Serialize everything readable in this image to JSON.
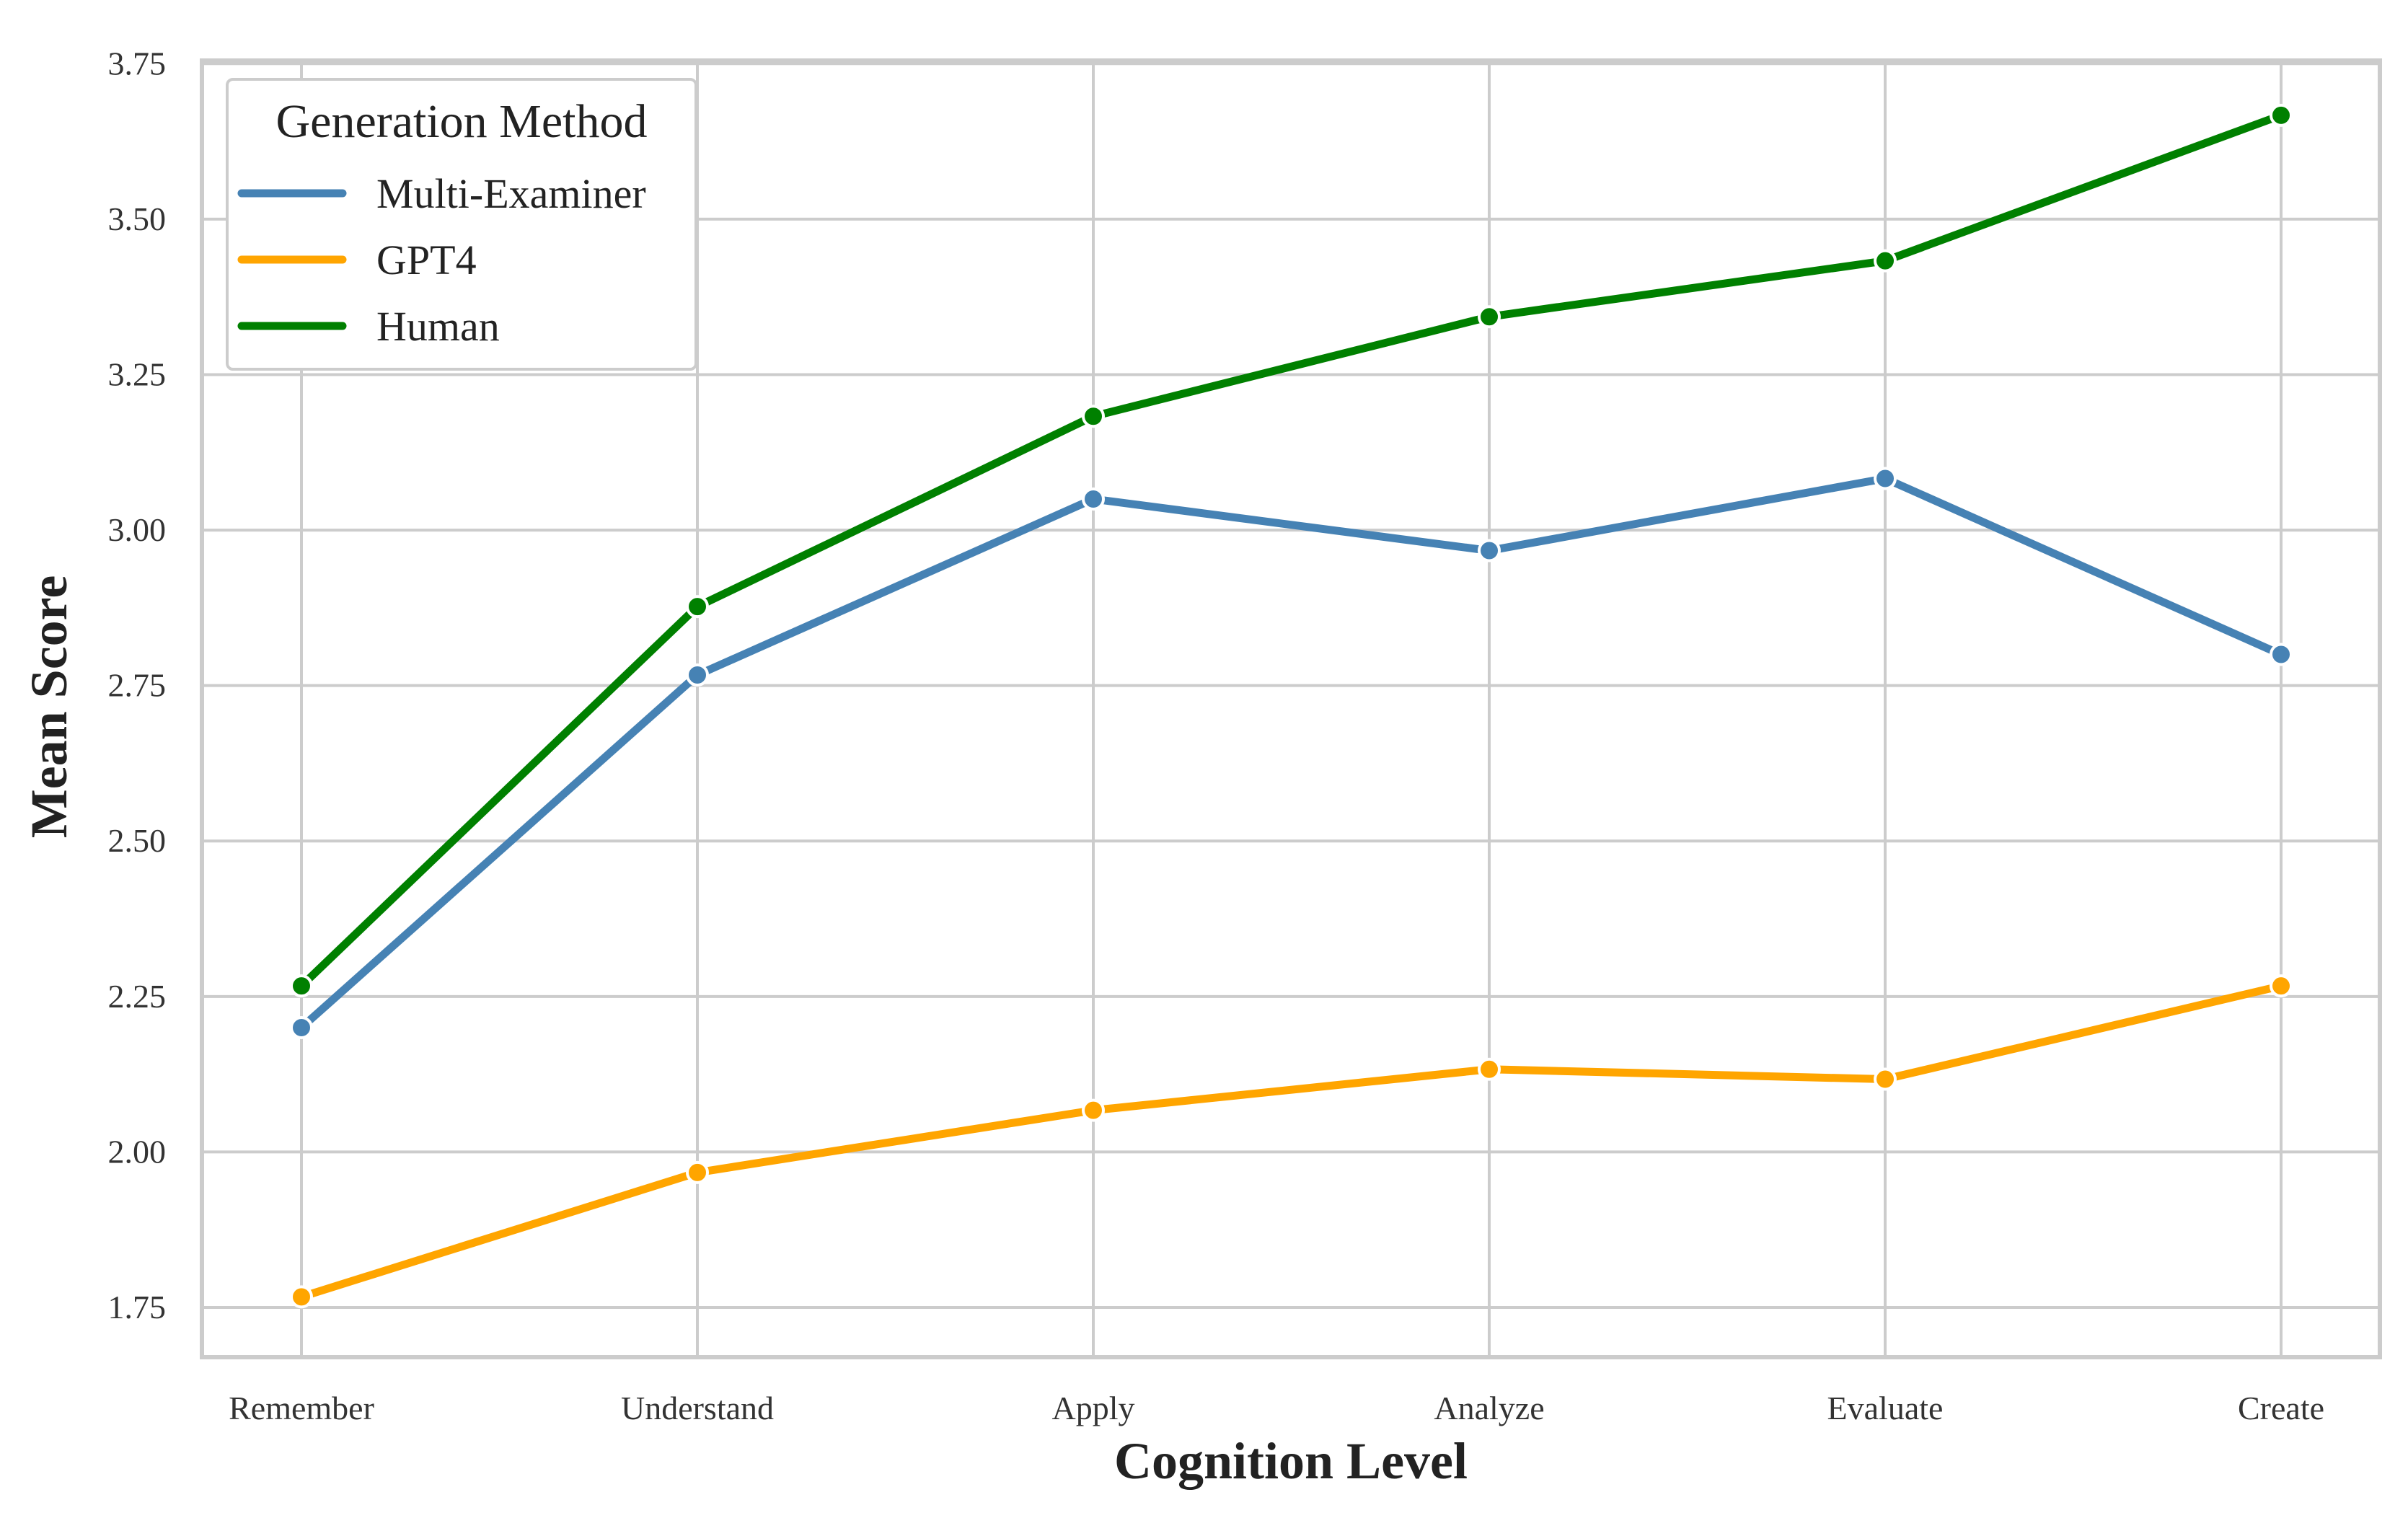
{
  "chart_data": {
    "type": "line",
    "title": "",
    "xlabel": "Cognition Level",
    "ylabel": "Mean Score",
    "categories": [
      "Remember",
      "Understand",
      "Apply",
      "Analyze",
      "Evaluate",
      "Create"
    ],
    "ylim": [
      1.67,
      3.755
    ],
    "yticks": [
      1.75,
      2.0,
      2.25,
      2.5,
      2.75,
      3.0,
      3.25,
      3.5,
      3.75
    ],
    "ytick_labels": [
      "1.75",
      "2.00",
      "2.25",
      "2.50",
      "2.75",
      "3.00",
      "3.25",
      "3.50",
      "3.75"
    ],
    "grid": true,
    "legend": {
      "title": "Generation Method",
      "placement": "top-left"
    },
    "series": [
      {
        "name": "Multi-Examiner",
        "color": "#4682B4",
        "values": [
          2.2,
          2.767,
          3.05,
          2.967,
          3.083,
          2.8
        ]
      },
      {
        "name": "GPT4",
        "color": "#FFA500",
        "values": [
          1.767,
          1.967,
          2.067,
          2.133,
          2.117,
          2.267
        ]
      },
      {
        "name": "Human",
        "color": "#008000",
        "values": [
          2.267,
          2.877,
          3.183,
          3.343,
          3.433,
          3.667
        ]
      }
    ]
  },
  "style": {
    "grid_color": "#CCCCCC",
    "frame_color": "#CCCCCC",
    "background": "#FFFFFF"
  }
}
